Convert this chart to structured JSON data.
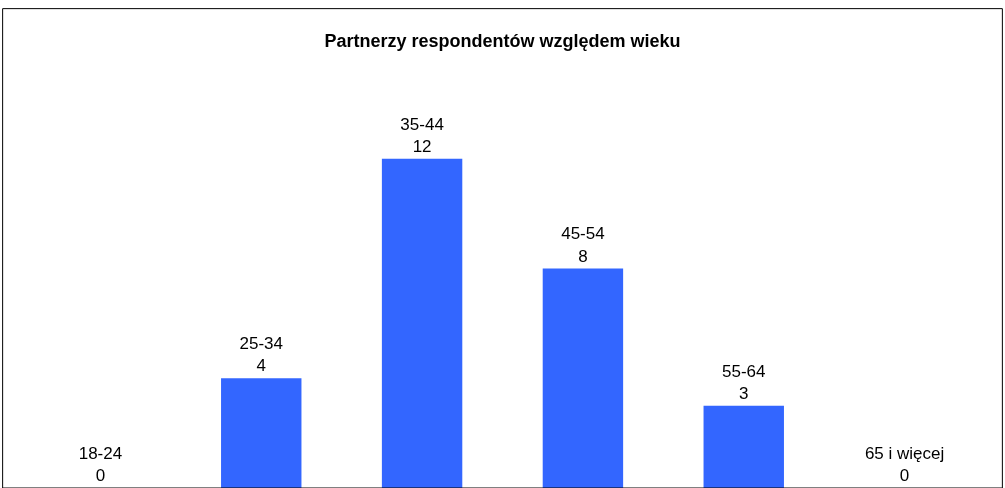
{
  "chart_data": {
    "type": "bar",
    "title": "Partnerzy respondentów względem wieku",
    "categories": [
      "18-24",
      "25-34",
      "35-44",
      "45-54",
      "55-64",
      "65 i więcej"
    ],
    "values": [
      0,
      4,
      12,
      8,
      3,
      0
    ],
    "color": "#3366ff",
    "data_labels": true,
    "legend": false
  }
}
